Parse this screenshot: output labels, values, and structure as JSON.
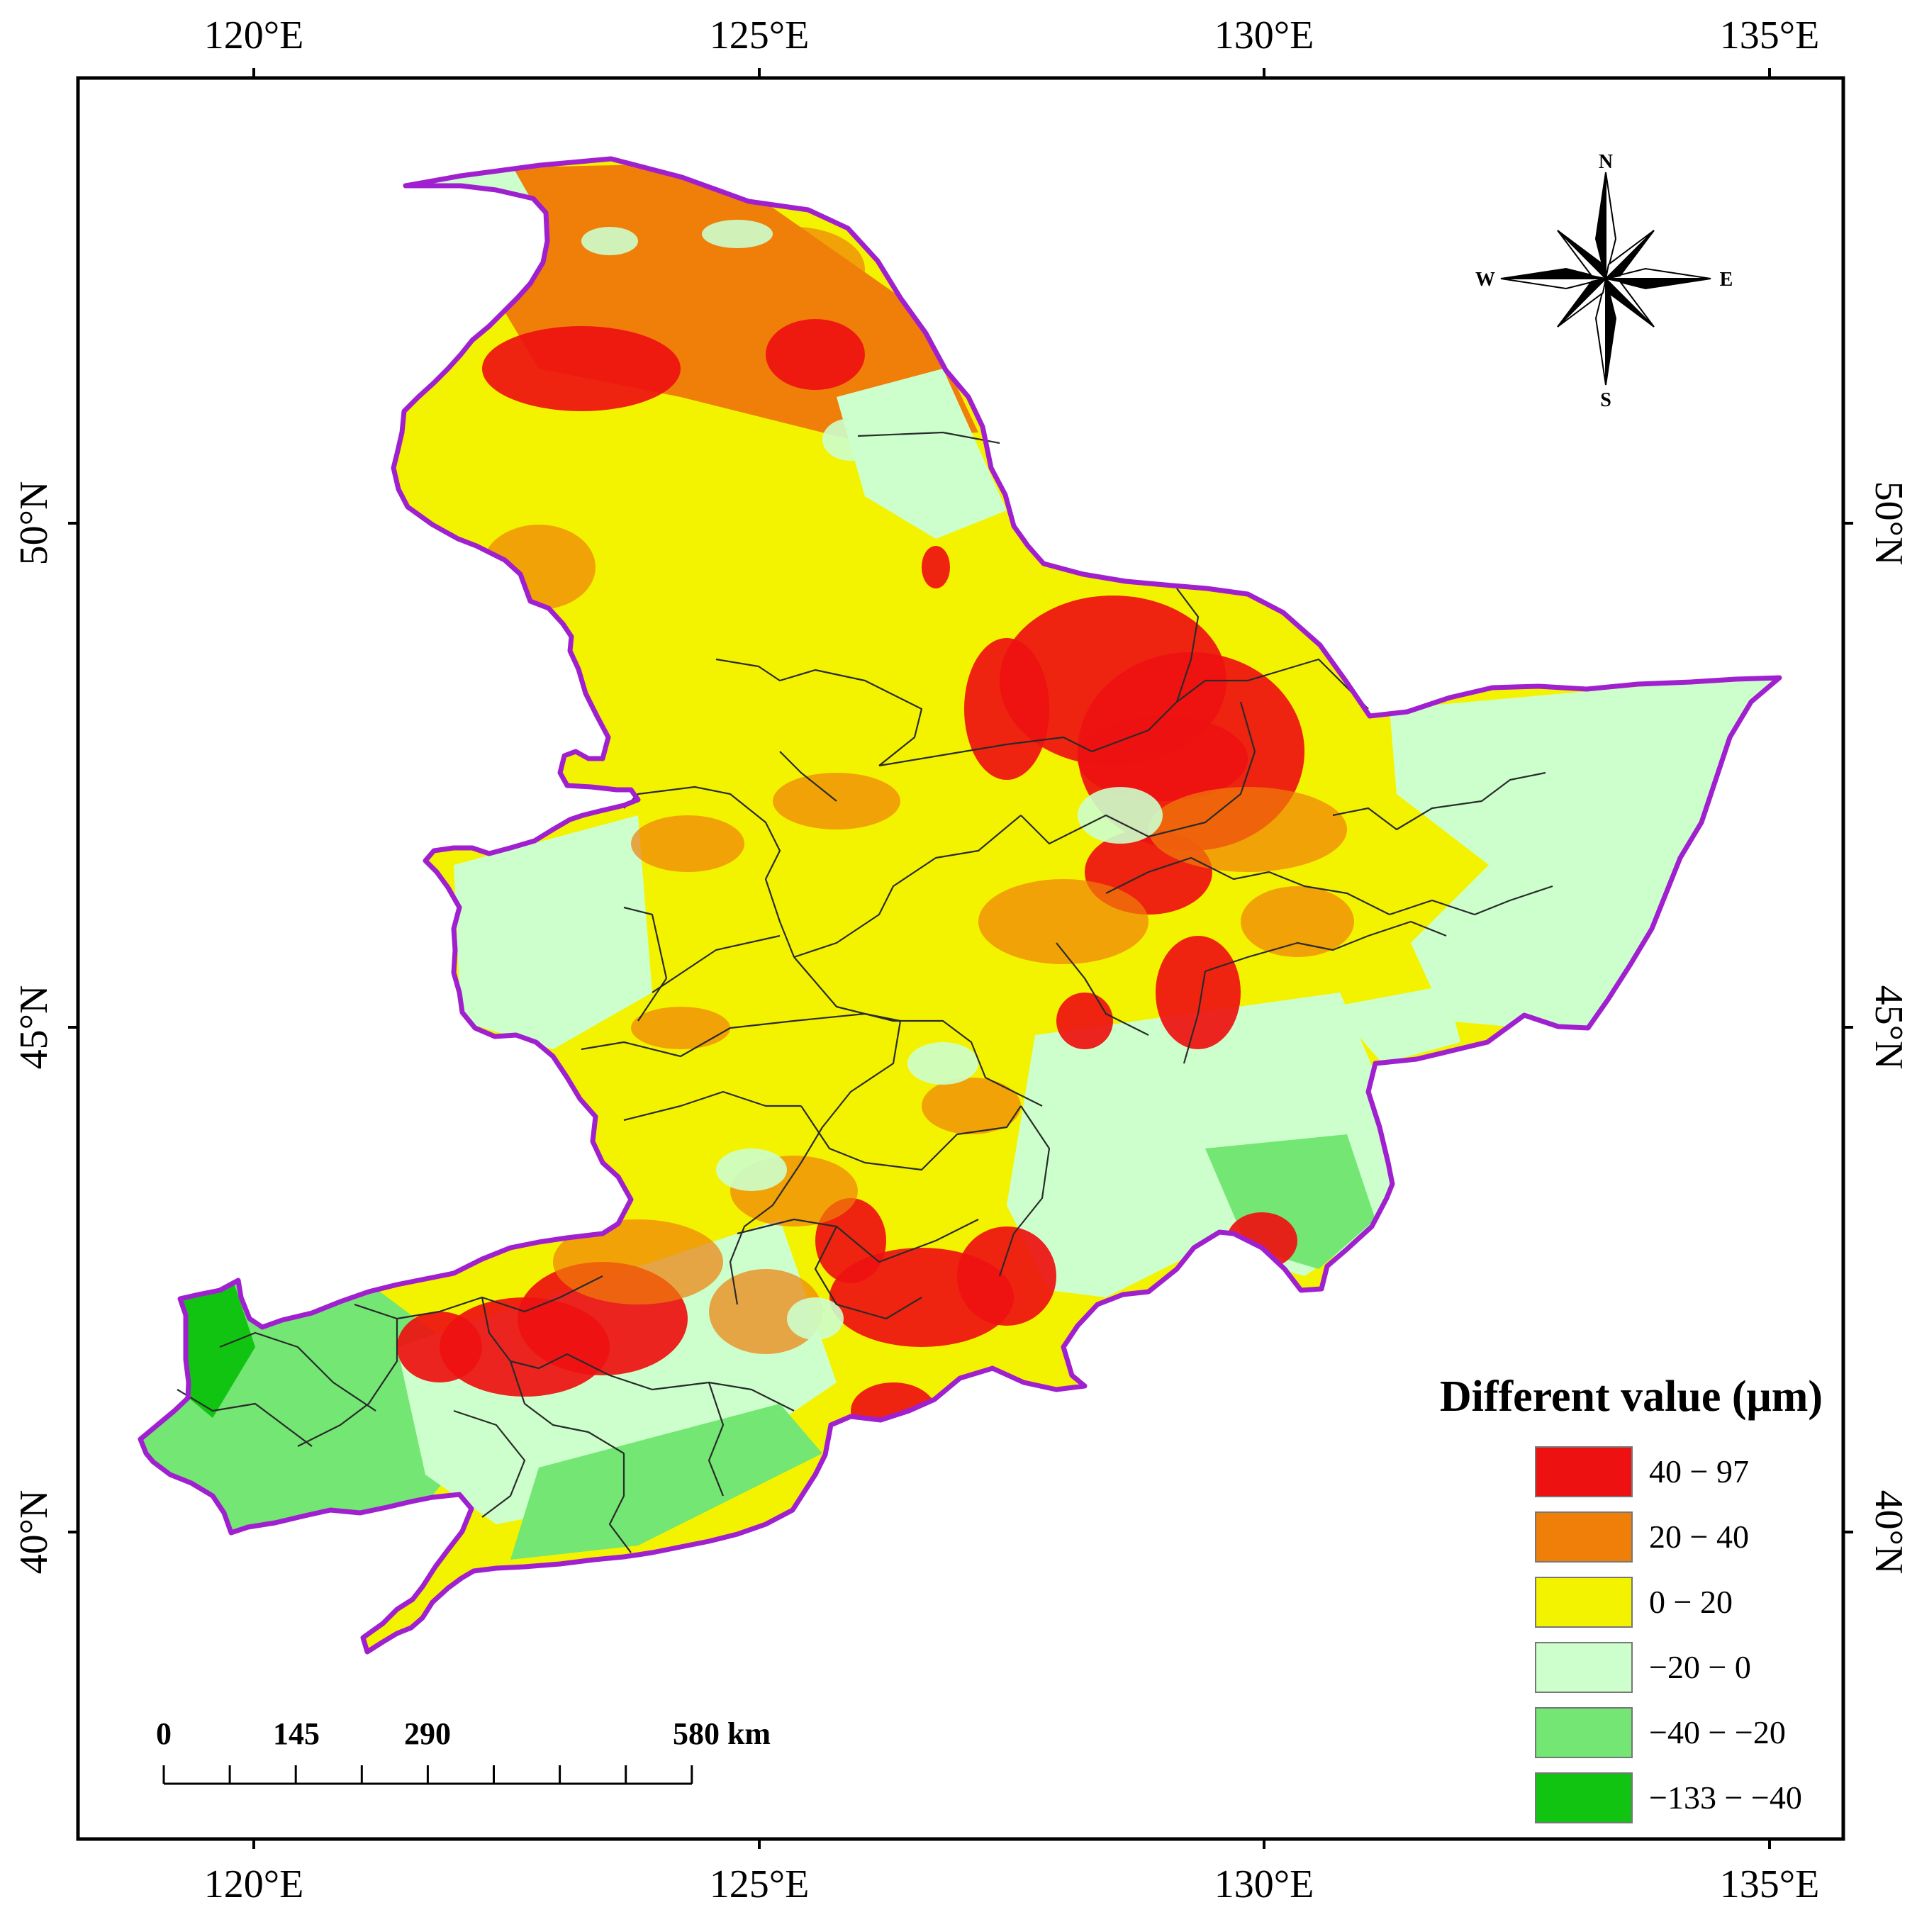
{
  "map": {
    "graticule": {
      "longitudes": [
        "120°E",
        "125°E",
        "130°E",
        "135°E"
      ],
      "latitudes": [
        "50°N",
        "45°N",
        "40°N"
      ]
    },
    "boundary_color": "#a020d0",
    "internal_boundary_color": "#2a2a2a"
  },
  "compass": {
    "north": "N",
    "south": "S",
    "east": "E",
    "west": "W"
  },
  "legend": {
    "title": "Different value (μm)",
    "classes": [
      {
        "label": "40 − 97",
        "color": "#ee1111"
      },
      {
        "label": "20 − 40",
        "color": "#f07f0a"
      },
      {
        "label": "0 − 20",
        "color": "#f3f300"
      },
      {
        "label": "−20 − 0",
        "color": "#ccffcc"
      },
      {
        "label": "−40 − −20",
        "color": "#73e673"
      },
      {
        "label": "−133 − −40",
        "color": "#11c411"
      }
    ]
  },
  "scale_bar": {
    "labels": [
      "0",
      "145",
      "290",
      "580 km"
    ]
  }
}
